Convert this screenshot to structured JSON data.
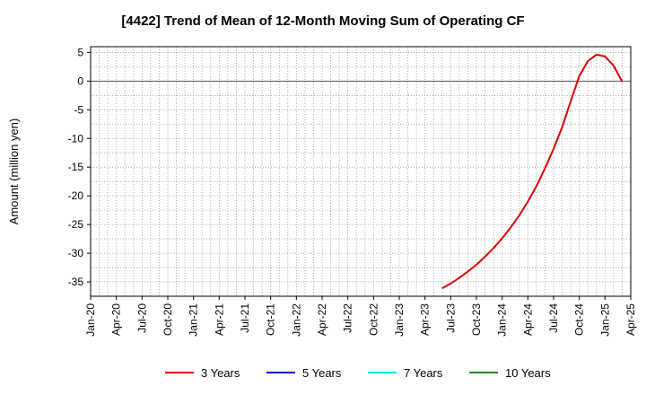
{
  "chart_data": {
    "type": "line",
    "title": "[4422]  Trend of Mean of 12-Month Moving Sum of Operating CF",
    "ylabel": "Amount (million yen)",
    "xlabel": "",
    "ylim": [
      -37.5,
      6
    ],
    "yticks": [
      5,
      0,
      -5,
      -10,
      -15,
      -20,
      -25,
      -30,
      -35
    ],
    "xlim": [
      "2020-01",
      "2025-04"
    ],
    "xticks": [
      "Jan-20",
      "Apr-20",
      "Jul-20",
      "Oct-20",
      "Jan-21",
      "Apr-21",
      "Jul-21",
      "Oct-21",
      "Jan-22",
      "Apr-22",
      "Jul-22",
      "Oct-22",
      "Jan-23",
      "Apr-23",
      "Jul-23",
      "Oct-23",
      "Jan-24",
      "Apr-24",
      "Jul-24",
      "Oct-24",
      "Jan-25",
      "Apr-25"
    ],
    "grid": true,
    "legend_position": "bottom",
    "series": [
      {
        "name": "3 Years",
        "color": "#dd0000",
        "points": [
          [
            "2023-06",
            -36.1
          ],
          [
            "2023-07",
            -35.3
          ],
          [
            "2023-08",
            -34.3
          ],
          [
            "2023-09",
            -33.2
          ],
          [
            "2023-10",
            -32.0
          ],
          [
            "2023-11",
            -30.6
          ],
          [
            "2023-12",
            -29.1
          ],
          [
            "2024-01",
            -27.4
          ],
          [
            "2024-02",
            -25.5
          ],
          [
            "2024-03",
            -23.4
          ],
          [
            "2024-04",
            -21.0
          ],
          [
            "2024-05",
            -18.3
          ],
          [
            "2024-06",
            -15.2
          ],
          [
            "2024-07",
            -11.8
          ],
          [
            "2024-08",
            -8.0
          ],
          [
            "2024-09",
            -3.5
          ],
          [
            "2024-10",
            0.9
          ],
          [
            "2024-11",
            3.5
          ],
          [
            "2024-12",
            4.6
          ],
          [
            "2025-01",
            4.3
          ],
          [
            "2025-02",
            2.7
          ],
          [
            "2025-03",
            -0.1
          ]
        ]
      },
      {
        "name": "5 Years",
        "color": "#0000cc",
        "points": []
      },
      {
        "name": "7 Years",
        "color": "#00e5e5",
        "points": []
      },
      {
        "name": "10 Years",
        "color": "#228b22",
        "points": []
      }
    ]
  }
}
